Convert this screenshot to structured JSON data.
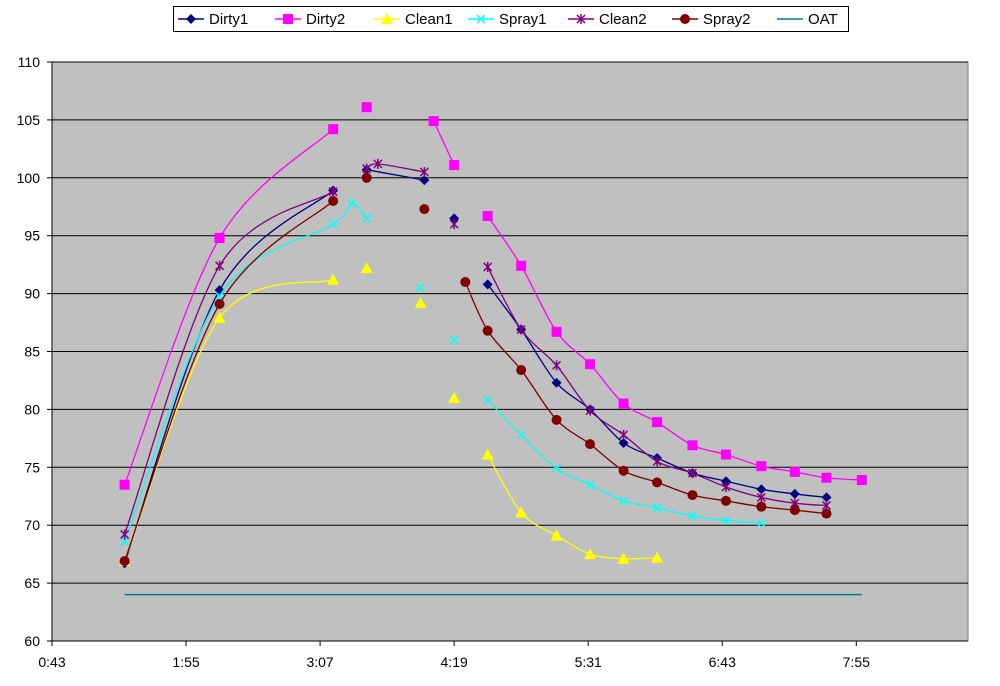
{
  "chart_data": {
    "type": "line",
    "title": "",
    "xlabel": "",
    "ylabel": "",
    "xlim": [
      "0:43",
      "8:55"
    ],
    "ylim": [
      60,
      110
    ],
    "x_ticks": [
      "0:43",
      "1:55",
      "3:07",
      "4:19",
      "5:31",
      "6:43",
      "7:55"
    ],
    "y_ticks": [
      "60",
      "65",
      "70",
      "75",
      "80",
      "85",
      "90",
      "95",
      "100",
      "105",
      "110"
    ],
    "grid": "horizontal",
    "plot_background": "#c0c0c0",
    "legend_position": "top",
    "series": [
      {
        "name": "Dirty1",
        "color": "#000080",
        "marker": "diamond",
        "smooth": true,
        "segments": [
          [
            [
              "1:22",
              66.7
            ],
            [
              "2:13",
              90.3
            ],
            [
              "3:14",
              98.9
            ]
          ],
          [
            [
              "3:32",
              100.7
            ],
            [
              "4:03",
              99.8
            ]
          ],
          [
            [
              "4:19",
              96.5
            ]
          ],
          [
            [
              "4:37",
              90.8
            ],
            [
              "4:55",
              86.9
            ],
            [
              "5:14",
              82.3
            ],
            [
              "5:32",
              80.0
            ],
            [
              "5:50",
              77.1
            ],
            [
              "6:08",
              75.8
            ],
            [
              "6:27",
              74.5
            ],
            [
              "6:45",
              73.8
            ],
            [
              "7:04",
              73.1
            ],
            [
              "7:22",
              72.7
            ],
            [
              "7:39",
              72.4
            ]
          ]
        ]
      },
      {
        "name": "Dirty2",
        "color": "#ff00ff",
        "marker": "square",
        "smooth": true,
        "segments": [
          [
            [
              "1:22",
              73.5
            ],
            [
              "2:13",
              94.8
            ],
            [
              "3:14",
              104.2
            ]
          ],
          [
            [
              "3:32",
              106.1
            ]
          ],
          [
            [
              "4:08",
              104.9
            ],
            [
              "4:19",
              101.1
            ]
          ],
          [
            [
              "4:37",
              96.7
            ],
            [
              "4:55",
              92.4
            ],
            [
              "5:14",
              86.7
            ],
            [
              "5:32",
              83.9
            ],
            [
              "5:50",
              80.5
            ],
            [
              "6:08",
              78.9
            ],
            [
              "6:27",
              76.9
            ],
            [
              "6:45",
              76.1
            ],
            [
              "7:04",
              75.1
            ],
            [
              "7:22",
              74.6
            ],
            [
              "7:39",
              74.1
            ],
            [
              "7:58",
              73.9
            ]
          ]
        ]
      },
      {
        "name": "Clean1",
        "color": "#ffff00",
        "marker": "triangle",
        "smooth": true,
        "segments": [
          [
            [
              "1:22",
              66.9
            ],
            [
              "2:13",
              87.9
            ],
            [
              "3:14",
              91.2
            ]
          ],
          [
            [
              "3:32",
              92.2
            ]
          ],
          [
            [
              "4:01",
              89.2
            ]
          ],
          [
            [
              "4:19",
              81.0
            ]
          ],
          [
            [
              "4:37",
              76.1
            ],
            [
              "4:55",
              71.1
            ],
            [
              "5:14",
              69.1
            ],
            [
              "5:32",
              67.5
            ],
            [
              "5:50",
              67.1
            ],
            [
              "6:08",
              67.2
            ]
          ]
        ]
      },
      {
        "name": "Spray1",
        "color": "#00ffff",
        "marker": "x",
        "smooth": true,
        "segments": [
          [
            [
              "1:22",
              68.6
            ],
            [
              "2:13",
              89.8
            ],
            [
              "3:14",
              96.0
            ],
            [
              "3:24",
              97.8
            ],
            [
              "3:32",
              96.5
            ]
          ],
          [
            [
              "4:01",
              90.5
            ]
          ],
          [
            [
              "4:19",
              86.0
            ]
          ],
          [
            [
              "4:37",
              80.8
            ],
            [
              "4:55",
              77.8
            ],
            [
              "5:14",
              74.9
            ],
            [
              "5:32",
              73.5
            ],
            [
              "5:50",
              72.1
            ],
            [
              "6:08",
              71.5
            ],
            [
              "6:27",
              70.8
            ],
            [
              "6:45",
              70.4
            ],
            [
              "7:04",
              70.2
            ]
          ]
        ]
      },
      {
        "name": "Clean2",
        "color": "#800080",
        "marker": "star",
        "smooth": true,
        "segments": [
          [
            [
              "1:22",
              69.2
            ],
            [
              "2:13",
              92.4
            ],
            [
              "3:14",
              98.8
            ]
          ],
          [
            [
              "3:32",
              100.8
            ],
            [
              "3:38",
              101.2
            ],
            [
              "4:03",
              100.5
            ]
          ],
          [
            [
              "4:19",
              96.0
            ]
          ],
          [
            [
              "4:37",
              92.3
            ],
            [
              "4:55",
              86.9
            ],
            [
              "5:14",
              83.8
            ],
            [
              "5:32",
              79.9
            ],
            [
              "5:50",
              77.8
            ],
            [
              "6:08",
              75.5
            ],
            [
              "6:27",
              74.5
            ],
            [
              "6:45",
              73.3
            ],
            [
              "7:04",
              72.4
            ],
            [
              "7:22",
              71.9
            ],
            [
              "7:39",
              71.7
            ]
          ]
        ]
      },
      {
        "name": "Spray2",
        "color": "#800000",
        "marker": "circle",
        "smooth": true,
        "segments": [
          [
            [
              "1:22",
              66.9
            ],
            [
              "2:13",
              89.1
            ],
            [
              "3:14",
              98.0
            ]
          ],
          [
            [
              "3:32",
              100.0
            ]
          ],
          [
            [
              "4:03",
              97.3
            ]
          ],
          [
            [
              "4:25",
              91.0
            ],
            [
              "4:37",
              86.8
            ],
            [
              "4:55",
              83.4
            ],
            [
              "5:14",
              79.1
            ],
            [
              "5:32",
              77.0
            ],
            [
              "5:50",
              74.7
            ],
            [
              "6:08",
              73.7
            ],
            [
              "6:27",
              72.6
            ],
            [
              "6:45",
              72.1
            ],
            [
              "7:04",
              71.6
            ],
            [
              "7:22",
              71.3
            ],
            [
              "7:39",
              71.0
            ]
          ]
        ]
      },
      {
        "name": "OAT",
        "color": "#008080",
        "marker": "none",
        "smooth": false,
        "segments": [
          [
            [
              "1:22",
              64.0
            ],
            [
              "7:58",
              64.0
            ]
          ]
        ]
      }
    ]
  }
}
